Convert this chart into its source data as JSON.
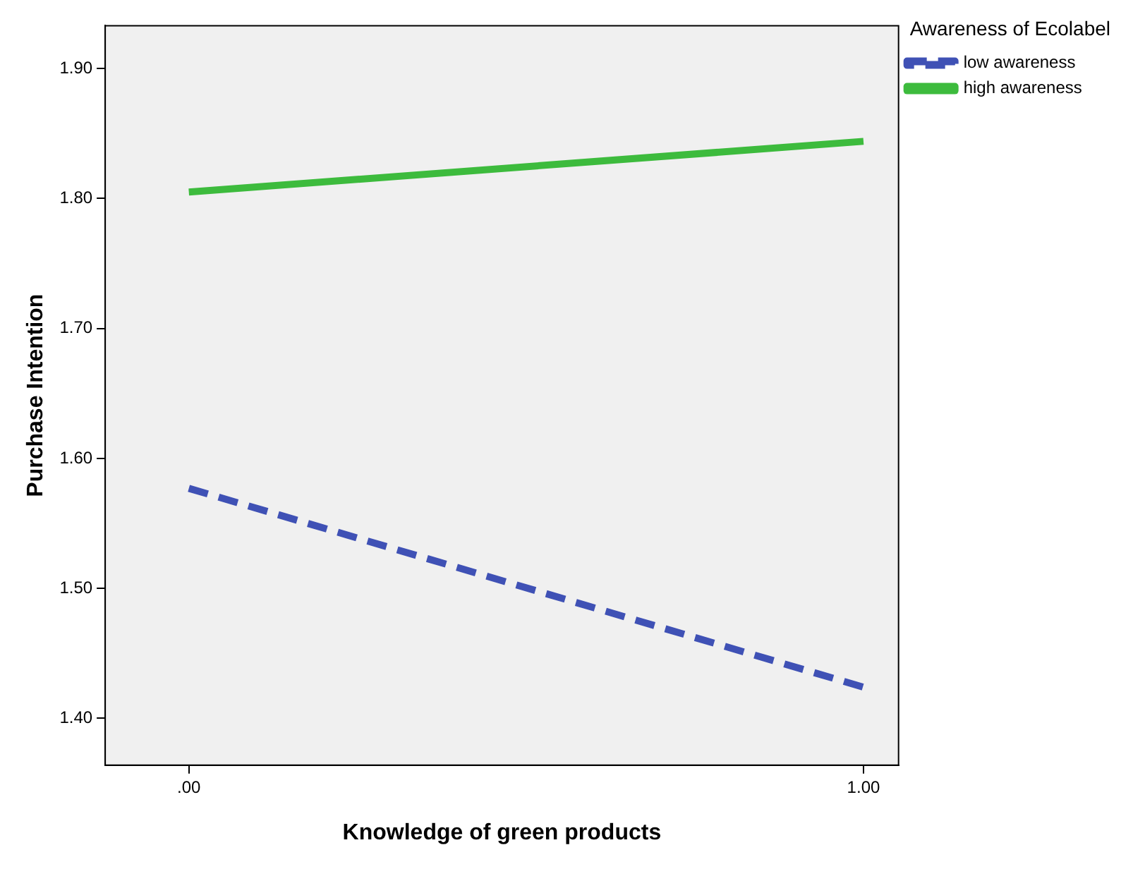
{
  "chart_data": {
    "type": "line",
    "xlabel": "Knowledge of green products",
    "ylabel": "Purchase Intention",
    "legend_title": "Awareness of Ecolabel",
    "x": [
      0,
      1
    ],
    "series": [
      {
        "name": "low awareness",
        "color": "#3f51b5",
        "values": [
          1.577,
          1.424
        ],
        "line_style": "dashed"
      },
      {
        "name": "high awareness",
        "color": "#3dbb3d",
        "values": [
          1.805,
          1.844
        ],
        "line_style": "solid"
      }
    ],
    "xlim": [
      -0.124,
      1.052
    ],
    "xticks": [
      {
        "value": 0,
        "label": ".00"
      },
      {
        "value": 1,
        "label": "1.00"
      }
    ],
    "ylim": [
      1.364,
      1.933
    ],
    "yticks": [
      {
        "value": 1.4,
        "label": "1.40"
      },
      {
        "value": 1.5,
        "label": "1.50"
      },
      {
        "value": 1.6,
        "label": "1.60"
      },
      {
        "value": 1.7,
        "label": "1.70"
      },
      {
        "value": 1.8,
        "label": "1.80"
      },
      {
        "value": 1.9,
        "label": "1.90"
      }
    ],
    "grid": false,
    "legend": "top right",
    "marker": "none"
  }
}
